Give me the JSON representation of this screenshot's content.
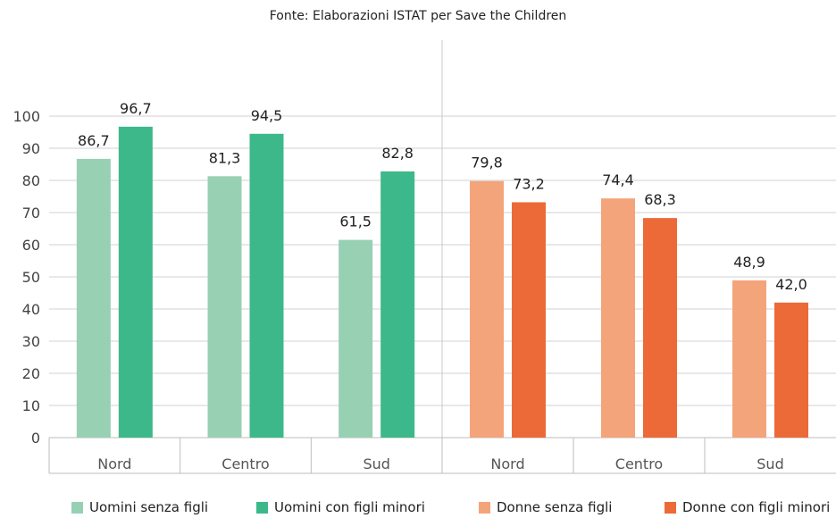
{
  "chart_data": {
    "type": "bar",
    "subtitle": "Fonte: Elaborazioni ISTAT per Save the Children",
    "ylim": [
      0,
      100
    ],
    "yticks": [
      "0",
      "10",
      "20",
      "30",
      "40",
      "50",
      "60",
      "70",
      "80",
      "90",
      "100"
    ],
    "grid": true,
    "legend_position": "bottom",
    "groups": [
      {
        "categories": [
          "Nord",
          "Centro",
          "Sud"
        ],
        "series": [
          {
            "name": "Uomini senza figli",
            "color": "#98d0b4",
            "values": [
              86.7,
              81.3,
              61.5
            ],
            "labels": [
              "86,7",
              "81,3",
              "61,5"
            ]
          },
          {
            "name": "Uomini con figli minori",
            "color": "#3db88b",
            "values": [
              96.7,
              94.5,
              82.8
            ],
            "labels": [
              "96,7",
              "94,5",
              "82,8"
            ]
          }
        ]
      },
      {
        "categories": [
          "Nord",
          "Centro",
          "Sud"
        ],
        "series": [
          {
            "name": "Donne senza figli",
            "color": "#f4a47a",
            "values": [
              79.8,
              74.4,
              48.9
            ],
            "labels": [
              "79,8",
              "74,4",
              "48,9"
            ]
          },
          {
            "name": "Donne con figli minori",
            "color": "#ec6a37",
            "values": [
              73.2,
              68.3,
              42.0
            ],
            "labels": [
              "73,2",
              "68,3",
              "42,0"
            ]
          }
        ]
      }
    ]
  },
  "legend": [
    {
      "label": "Uomini senza figli",
      "color": "#98d0b4"
    },
    {
      "label": "Uomini con figli minori",
      "color": "#3db88b"
    },
    {
      "label": "Donne senza figli",
      "color": "#f4a47a"
    },
    {
      "label": "Donne con figli minori",
      "color": "#ec6a37"
    }
  ]
}
